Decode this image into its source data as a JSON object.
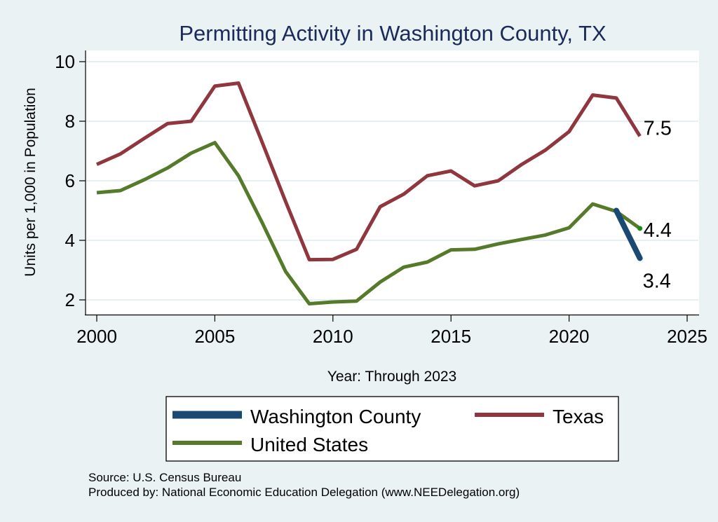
{
  "chart_data": {
    "type": "line",
    "title": "Permitting Activity in Washington County, TX",
    "xlabel": "Year: Through 2023",
    "ylabel": "Units per 1,000 in Population",
    "xlim": [
      2000,
      2025
    ],
    "ylim": [
      1.6,
      10.4
    ],
    "xticks": [
      2000,
      2005,
      2010,
      2015,
      2020,
      2025
    ],
    "yticks": [
      2,
      4,
      6,
      8,
      10
    ],
    "grid": "horizontal",
    "series": [
      {
        "name": "Washington County",
        "color": "#1a4a72",
        "x": [
          2022,
          2023
        ],
        "values": [
          5.0,
          3.4
        ],
        "end_label": "3.4"
      },
      {
        "name": "Texas",
        "color": "#8f363e",
        "x": [
          2000,
          2001,
          2002,
          2003,
          2004,
          2005,
          2006,
          2007,
          2008,
          2009,
          2010,
          2011,
          2012,
          2013,
          2014,
          2015,
          2016,
          2017,
          2018,
          2019,
          2020,
          2021,
          2022,
          2023
        ],
        "values": [
          6.55,
          6.9,
          7.42,
          7.92,
          8.0,
          9.18,
          9.28,
          7.3,
          5.3,
          3.35,
          3.36,
          3.7,
          5.13,
          5.55,
          6.17,
          6.33,
          5.83,
          6.0,
          6.55,
          7.03,
          7.65,
          8.88,
          8.78,
          7.5
        ],
        "end_label": "7.5"
      },
      {
        "name": "United States",
        "color": "#557a2a",
        "x": [
          2000,
          2001,
          2002,
          2003,
          2004,
          2005,
          2006,
          2007,
          2008,
          2009,
          2010,
          2011,
          2012,
          2013,
          2014,
          2015,
          2016,
          2017,
          2018,
          2019,
          2020,
          2021,
          2022,
          2023
        ],
        "values": [
          5.6,
          5.67,
          6.03,
          6.43,
          6.93,
          7.28,
          6.17,
          4.6,
          2.95,
          1.87,
          1.93,
          1.96,
          2.6,
          3.1,
          3.27,
          3.68,
          3.7,
          3.88,
          4.03,
          4.18,
          4.42,
          5.22,
          4.97,
          4.4
        ],
        "end_label": "4.4"
      }
    ],
    "legend": {
      "placement": "bottom",
      "entries": [
        "Washington County",
        "Texas",
        "United States"
      ]
    },
    "notes": [
      "Source: U.S. Census Bureau",
      "Produced by: National Economic Education Delegation (www.NEEDelegation.org)"
    ]
  }
}
